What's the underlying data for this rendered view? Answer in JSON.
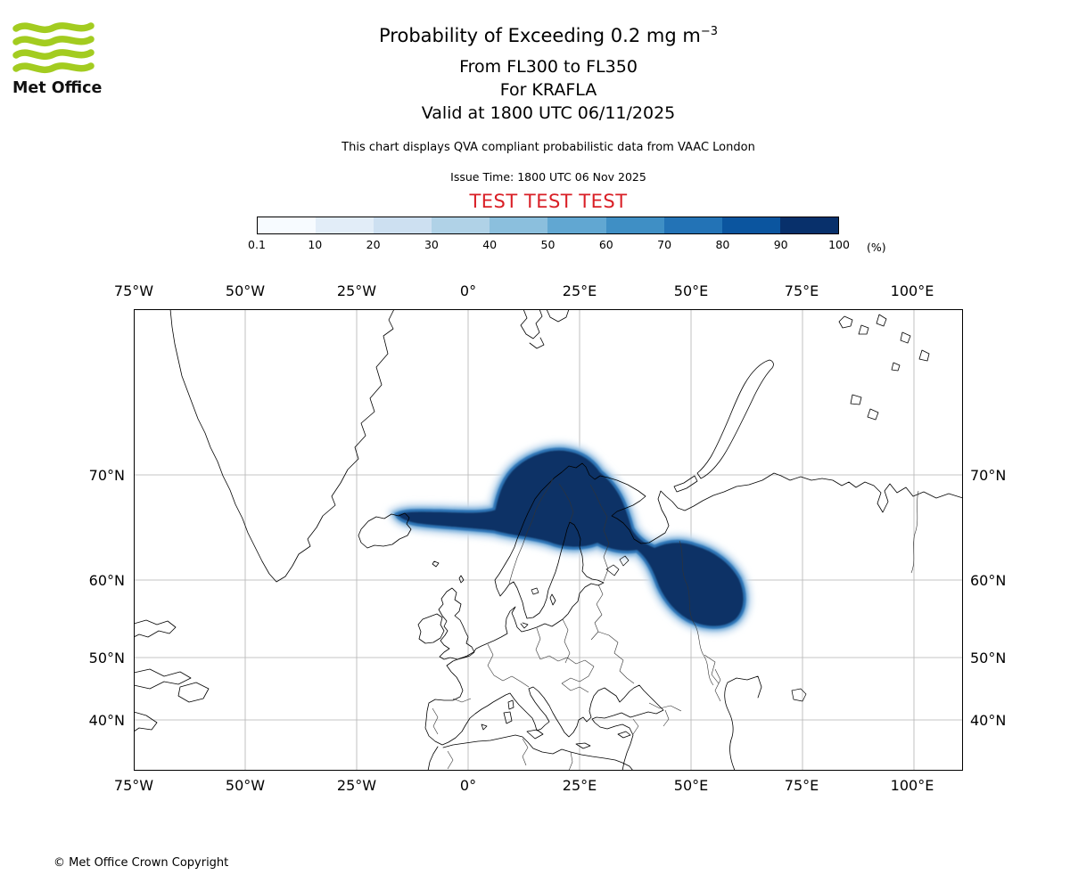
{
  "logo": {
    "text": "Met Office",
    "green": "#a3cc20"
  },
  "header": {
    "title_main": "Probability of Exceeding 0.2 mg m",
    "title_sup": "−3",
    "subtitle_fl": "From FL300 to FL350",
    "subtitle_volcano": "For KRAFLA",
    "subtitle_valid": "Valid at 1800 UTC 06/11/2025",
    "description": "This chart displays QVA compliant probabilistic data from VAAC London",
    "issue_time": "Issue Time: 1800 UTC 06 Nov 2025",
    "test_banner": "TEST TEST TEST",
    "test_color": "#d91f26"
  },
  "colorbar": {
    "tick_labels": [
      "0.1",
      "10",
      "20",
      "30",
      "40",
      "50",
      "60",
      "70",
      "80",
      "90",
      "100"
    ],
    "unit_label": "(%)",
    "colors": [
      "#f7fbff",
      "#e2edf8",
      "#cde0f1",
      "#b0d2e7",
      "#8bbfdd",
      "#61a7d2",
      "#3f8fc5",
      "#2373b6",
      "#0b559f",
      "#08306b"
    ]
  },
  "plume": {
    "core": "#0a3166",
    "mid": "#2e75b6",
    "fringe": "#7fb2dc",
    "halo": "#c6dcef"
  },
  "map": {
    "lon_labels": [
      "75°W",
      "50°W",
      "25°W",
      "0°",
      "25°E",
      "50°E",
      "75°E",
      "100°E"
    ],
    "lat_labels": [
      "70°N",
      "60°N",
      "50°N",
      "40°N"
    ]
  },
  "footer": {
    "copyright": "© Met Office Crown Copyright"
  }
}
